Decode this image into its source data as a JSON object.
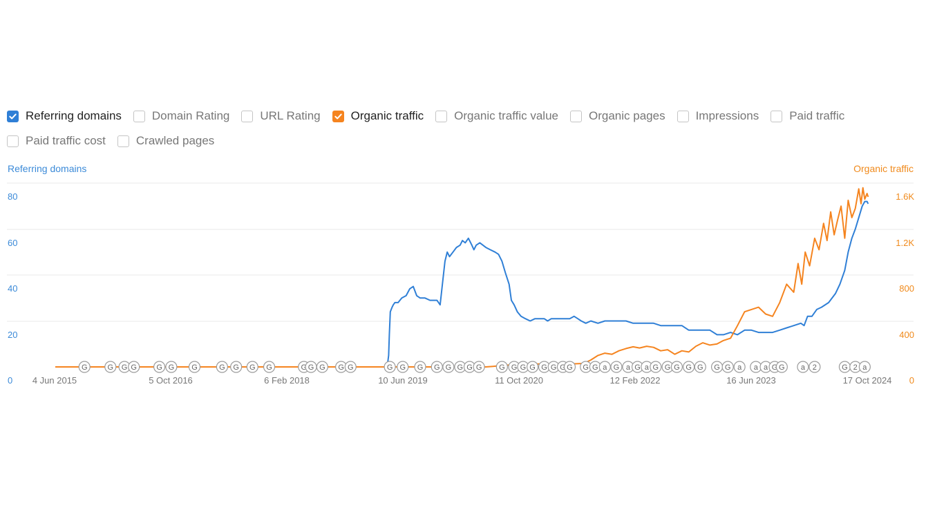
{
  "metrics": [
    {
      "label": "Referring domains",
      "checked": true,
      "color": "#2f7fd6"
    },
    {
      "label": "Domain Rating",
      "checked": false
    },
    {
      "label": "URL Rating",
      "checked": false
    },
    {
      "label": "Organic traffic",
      "checked": true,
      "color": "#f5841f"
    },
    {
      "label": "Organic traffic value",
      "checked": false
    },
    {
      "label": "Organic pages",
      "checked": false
    },
    {
      "label": "Impressions",
      "checked": false
    },
    {
      "label": "Paid traffic",
      "checked": false
    },
    {
      "label": "Paid traffic cost",
      "checked": false
    },
    {
      "label": "Crawled pages",
      "checked": false
    }
  ],
  "chart_data": {
    "type": "line",
    "x_ticks": [
      "4 Jun 2015",
      "5 Oct 2016",
      "6 Feb 2018",
      "10 Jun 2019",
      "11 Oct 2020",
      "12 Feb 2022",
      "16 Jun 2023",
      "17 Oct 2024"
    ],
    "y_left": {
      "label": "Referring domains",
      "ticks": [
        "0",
        "20",
        "40",
        "60",
        "80"
      ],
      "range": [
        0,
        80
      ],
      "color": "#3b8ad8"
    },
    "y_right": {
      "label": "Organic traffic",
      "ticks": [
        "0",
        "400",
        "800",
        "1.2K",
        "1.6K"
      ],
      "range": [
        0,
        1600
      ],
      "color": "#f08a1c"
    },
    "grid": true,
    "series": [
      {
        "name": "Referring domains",
        "axis": "left",
        "color": "#2f7fd6",
        "points": [
          [
            "2019-02-20",
            0
          ],
          [
            "2019-02-25",
            1
          ],
          [
            "2019-03-01",
            2
          ],
          [
            "2019-03-05",
            5
          ],
          [
            "2019-03-08",
            14
          ],
          [
            "2019-03-12",
            24
          ],
          [
            "2019-03-16",
            25
          ],
          [
            "2019-03-20",
            26
          ],
          [
            "2019-03-25",
            27
          ],
          [
            "2019-04-01",
            28
          ],
          [
            "2019-04-15",
            28
          ],
          [
            "2019-05-01",
            30
          ],
          [
            "2019-05-20",
            31
          ],
          [
            "2019-06-05",
            34
          ],
          [
            "2019-06-20",
            35
          ],
          [
            "2019-07-05",
            31
          ],
          [
            "2019-07-20",
            30
          ],
          [
            "2019-08-10",
            30
          ],
          [
            "2019-09-01",
            29
          ],
          [
            "2019-10-01",
            29
          ],
          [
            "2019-10-15",
            27
          ],
          [
            "2019-10-25",
            36
          ],
          [
            "2019-11-05",
            46
          ],
          [
            "2019-11-15",
            50
          ],
          [
            "2019-11-25",
            48
          ],
          [
            "2019-12-10",
            50
          ],
          [
            "2019-12-25",
            52
          ],
          [
            "2020-01-10",
            53
          ],
          [
            "2020-01-20",
            55
          ],
          [
            "2020-02-01",
            54
          ],
          [
            "2020-02-15",
            56
          ],
          [
            "2020-03-01",
            53
          ],
          [
            "2020-03-10",
            51
          ],
          [
            "2020-03-20",
            53
          ],
          [
            "2020-04-05",
            54
          ],
          [
            "2020-05-01",
            52
          ],
          [
            "2020-05-20",
            51
          ],
          [
            "2020-06-10",
            50
          ],
          [
            "2020-06-25",
            49
          ],
          [
            "2020-07-10",
            46
          ],
          [
            "2020-07-25",
            41
          ],
          [
            "2020-08-10",
            36
          ],
          [
            "2020-08-20",
            29
          ],
          [
            "2020-09-01",
            27
          ],
          [
            "2020-09-15",
            24
          ],
          [
            "2020-10-01",
            22
          ],
          [
            "2020-10-20",
            21
          ],
          [
            "2020-11-10",
            20
          ],
          [
            "2020-12-01",
            21
          ],
          [
            "2020-12-20",
            21
          ],
          [
            "2021-01-10",
            21
          ],
          [
            "2021-01-25",
            20
          ],
          [
            "2021-02-10",
            21
          ],
          [
            "2021-02-25",
            21
          ],
          [
            "2021-04-01",
            21
          ],
          [
            "2021-05-01",
            21
          ],
          [
            "2021-05-20",
            22
          ],
          [
            "2021-06-05",
            21
          ],
          [
            "2021-06-20",
            20
          ],
          [
            "2021-07-10",
            19
          ],
          [
            "2021-08-01",
            20
          ],
          [
            "2021-09-01",
            19
          ],
          [
            "2021-10-01",
            20
          ],
          [
            "2021-11-01",
            20
          ],
          [
            "2021-12-01",
            20
          ],
          [
            "2022-01-01",
            20
          ],
          [
            "2022-02-01",
            19
          ],
          [
            "2022-03-01",
            19
          ],
          [
            "2022-04-01",
            19
          ],
          [
            "2022-05-01",
            19
          ],
          [
            "2022-06-01",
            18
          ],
          [
            "2022-07-01",
            18
          ],
          [
            "2022-08-01",
            18
          ],
          [
            "2022-09-01",
            18
          ],
          [
            "2022-10-01",
            16
          ],
          [
            "2022-11-01",
            16
          ],
          [
            "2022-12-01",
            16
          ],
          [
            "2023-01-01",
            16
          ],
          [
            "2023-02-01",
            14
          ],
          [
            "2023-03-01",
            14
          ],
          [
            "2023-04-01",
            15
          ],
          [
            "2023-05-01",
            14
          ],
          [
            "2023-06-01",
            16
          ],
          [
            "2023-07-01",
            16
          ],
          [
            "2023-08-01",
            15
          ],
          [
            "2023-09-01",
            15
          ],
          [
            "2023-10-01",
            15
          ],
          [
            "2023-11-01",
            16
          ],
          [
            "2023-12-01",
            17
          ],
          [
            "2024-01-01",
            18
          ],
          [
            "2024-02-01",
            19
          ],
          [
            "2024-02-15",
            18
          ],
          [
            "2024-03-01",
            22
          ],
          [
            "2024-03-20",
            22
          ],
          [
            "2024-04-10",
            25
          ],
          [
            "2024-05-01",
            26
          ],
          [
            "2024-06-01",
            28
          ],
          [
            "2024-07-01",
            32
          ],
          [
            "2024-07-20",
            36
          ],
          [
            "2024-08-10",
            42
          ],
          [
            "2024-08-25",
            50
          ],
          [
            "2024-09-10",
            56
          ],
          [
            "2024-09-25",
            60
          ],
          [
            "2024-10-10",
            65
          ],
          [
            "2024-10-25",
            70
          ],
          [
            "2024-11-05",
            72
          ],
          [
            "2024-11-15",
            72
          ],
          [
            "2024-11-20",
            71
          ]
        ]
      },
      {
        "name": "Organic traffic",
        "axis": "right",
        "color": "#f5841f",
        "points": [
          [
            "2015-03-15",
            0
          ],
          [
            "2020-05-01",
            0
          ],
          [
            "2020-06-01",
            5
          ],
          [
            "2020-07-01",
            10
          ],
          [
            "2020-08-01",
            15
          ],
          [
            "2020-09-01",
            20
          ],
          [
            "2020-10-01",
            15
          ],
          [
            "2020-11-01",
            20
          ],
          [
            "2020-12-01",
            25
          ],
          [
            "2021-01-01",
            25
          ],
          [
            "2021-03-01",
            20
          ],
          [
            "2021-05-01",
            25
          ],
          [
            "2021-07-01",
            30
          ],
          [
            "2021-08-01",
            60
          ],
          [
            "2021-09-01",
            100
          ],
          [
            "2021-10-01",
            120
          ],
          [
            "2021-11-01",
            110
          ],
          [
            "2021-12-01",
            140
          ],
          [
            "2022-01-01",
            160
          ],
          [
            "2022-02-01",
            175
          ],
          [
            "2022-03-01",
            165
          ],
          [
            "2022-04-01",
            180
          ],
          [
            "2022-05-01",
            170
          ],
          [
            "2022-06-01",
            140
          ],
          [
            "2022-07-01",
            150
          ],
          [
            "2022-08-01",
            110
          ],
          [
            "2022-09-01",
            140
          ],
          [
            "2022-10-01",
            130
          ],
          [
            "2022-11-01",
            180
          ],
          [
            "2022-12-01",
            210
          ],
          [
            "2023-01-01",
            190
          ],
          [
            "2023-02-01",
            200
          ],
          [
            "2023-03-01",
            230
          ],
          [
            "2023-04-01",
            250
          ],
          [
            "2023-05-01",
            360
          ],
          [
            "2023-06-01",
            480
          ],
          [
            "2023-07-01",
            500
          ],
          [
            "2023-08-01",
            520
          ],
          [
            "2023-09-01",
            460
          ],
          [
            "2023-10-01",
            440
          ],
          [
            "2023-11-01",
            560
          ],
          [
            "2023-12-01",
            720
          ],
          [
            "2024-01-01",
            650
          ],
          [
            "2024-01-20",
            900
          ],
          [
            "2024-02-05",
            720
          ],
          [
            "2024-02-20",
            1000
          ],
          [
            "2024-03-10",
            880
          ],
          [
            "2024-04-01",
            1120
          ],
          [
            "2024-04-20",
            1020
          ],
          [
            "2024-05-10",
            1250
          ],
          [
            "2024-05-25",
            1100
          ],
          [
            "2024-06-10",
            1350
          ],
          [
            "2024-06-25",
            1150
          ],
          [
            "2024-07-10",
            1280
          ],
          [
            "2024-07-25",
            1400
          ],
          [
            "2024-08-10",
            1120
          ],
          [
            "2024-08-25",
            1450
          ],
          [
            "2024-09-10",
            1300
          ],
          [
            "2024-09-25",
            1380
          ],
          [
            "2024-10-10",
            1550
          ],
          [
            "2024-10-20",
            1420
          ],
          [
            "2024-10-28",
            1560
          ],
          [
            "2024-11-05",
            1460
          ],
          [
            "2024-11-15",
            1510
          ],
          [
            "2024-11-20",
            1480
          ]
        ]
      }
    ],
    "annotations": [
      {
        "date": "2015-07-20",
        "label": "G"
      },
      {
        "date": "2015-11-10",
        "label": "G"
      },
      {
        "date": "2016-01-10",
        "label": "G"
      },
      {
        "date": "2016-02-20",
        "label": "G"
      },
      {
        "date": "2016-06-10",
        "label": "G"
      },
      {
        "date": "2016-08-01",
        "label": "G"
      },
      {
        "date": "2016-11-10",
        "label": "G"
      },
      {
        "date": "2017-03-10",
        "label": "G"
      },
      {
        "date": "2017-05-10",
        "label": "G"
      },
      {
        "date": "2017-07-20",
        "label": "G"
      },
      {
        "date": "2017-10-01",
        "label": "G"
      },
      {
        "date": "2018-03-01",
        "label": "G"
      },
      {
        "date": "2018-04-01",
        "label": "G"
      },
      {
        "date": "2018-05-20",
        "label": "G"
      },
      {
        "date": "2018-08-10",
        "label": "G"
      },
      {
        "date": "2018-09-20",
        "label": "G"
      },
      {
        "date": "2019-03-10",
        "label": "G"
      },
      {
        "date": "2019-05-05",
        "label": "G"
      },
      {
        "date": "2019-07-20",
        "label": "G"
      },
      {
        "date": "2019-10-01",
        "label": "G"
      },
      {
        "date": "2019-11-20",
        "label": "G"
      },
      {
        "date": "2020-01-10",
        "label": "G"
      },
      {
        "date": "2020-02-20",
        "label": "G"
      },
      {
        "date": "2020-04-01",
        "label": "G"
      },
      {
        "date": "2020-07-10",
        "label": "G"
      },
      {
        "date": "2020-09-01",
        "label": "G"
      },
      {
        "date": "2020-10-10",
        "label": "G"
      },
      {
        "date": "2020-11-20",
        "label": "G"
      },
      {
        "date": "2021-01-10",
        "label": "G"
      },
      {
        "date": "2021-02-20",
        "label": "G"
      },
      {
        "date": "2021-04-01",
        "label": "G"
      },
      {
        "date": "2021-05-01",
        "label": "G"
      },
      {
        "date": "2021-07-10",
        "label": "G"
      },
      {
        "date": "2021-08-20",
        "label": "G"
      },
      {
        "date": "2021-10-01",
        "label": "a"
      },
      {
        "date": "2021-11-20",
        "label": "G"
      },
      {
        "date": "2022-01-10",
        "label": "a"
      },
      {
        "date": "2022-02-20",
        "label": "G"
      },
      {
        "date": "2022-04-01",
        "label": "a"
      },
      {
        "date": "2022-05-10",
        "label": "G"
      },
      {
        "date": "2022-07-01",
        "label": "G"
      },
      {
        "date": "2022-08-10",
        "label": "G"
      },
      {
        "date": "2022-10-01",
        "label": "G"
      },
      {
        "date": "2022-11-20",
        "label": "G"
      },
      {
        "date": "2023-02-01",
        "label": "G"
      },
      {
        "date": "2023-03-20",
        "label": "G"
      },
      {
        "date": "2023-05-10",
        "label": "a"
      },
      {
        "date": "2023-07-20",
        "label": "a"
      },
      {
        "date": "2023-09-01",
        "label": "a"
      },
      {
        "date": "2023-10-10",
        "label": "G"
      },
      {
        "date": "2023-11-10",
        "label": "G"
      },
      {
        "date": "2024-02-10",
        "label": "a"
      },
      {
        "date": "2024-04-01",
        "label": "2"
      },
      {
        "date": "2024-08-10",
        "label": "G"
      },
      {
        "date": "2024-09-25",
        "label": "2"
      },
      {
        "date": "2024-11-05",
        "label": "a"
      }
    ]
  }
}
